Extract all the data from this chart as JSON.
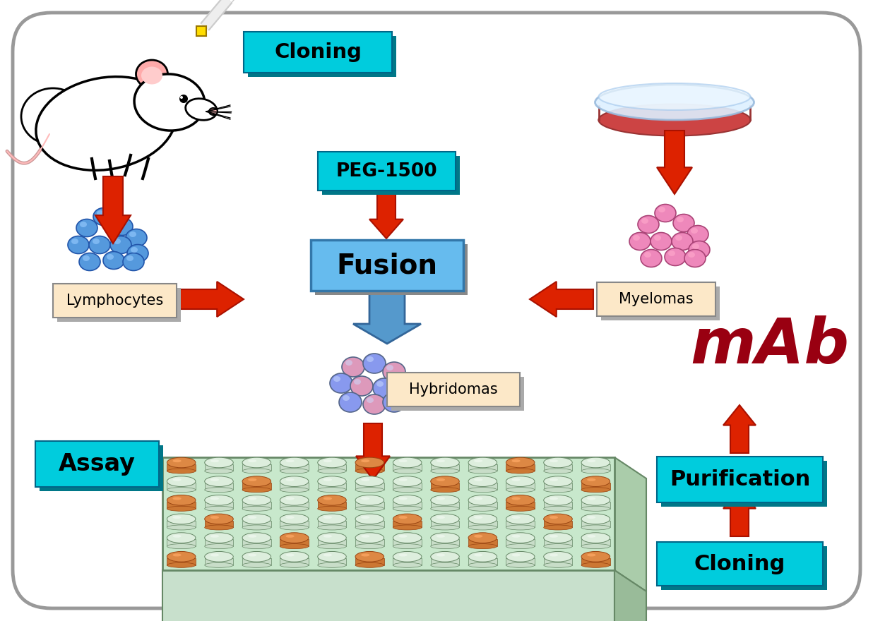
{
  "background_color": "#ffffff",
  "border_color": "#999999",
  "cyan_box_color": "#00ccdd",
  "cyan_shadow_color": "#007788",
  "peach_box_color": "#fce8c8",
  "peach_shadow_color": "#aaaaaa",
  "red_arrow_color": "#dd2200",
  "red_arrow_edge": "#aa1100",
  "fusion_box_color": "#66bbee",
  "fusion_shadow_color": "#888888",
  "fusion_text_color": "#000000",
  "blue_arrow_color": "#5599cc",
  "blue_arrow_edge": "#336699",
  "mab_text_color": "#990011",
  "lymphocyte_color": "#5599dd",
  "lymphocyte_edge": "#2255aa",
  "myeloma_color": "#ee88bb",
  "myeloma_edge": "#aa4477",
  "hybridoma_blue": "#8899ee",
  "hybridoma_pink": "#dd99bb",
  "well_plate_top": "#c8e8cc",
  "well_plate_side": "#99cc99",
  "well_plate_bottom": "#88bb88",
  "well_plate_edge": "#668866",
  "well_glass_color": "#ddeedd",
  "well_orange_color": "#cc7733",
  "well_orange_edge": "#994411",
  "labels": {
    "cloning_top": "Cloning",
    "peg": "PEG-1500",
    "fusion": "Fusion",
    "lymphocytes": "Lymphocytes",
    "myelomas": "Myelomas",
    "hybridomas": "Hybridomas",
    "assay": "Assay",
    "purification": "Purification",
    "cloning_bottom": "Cloning",
    "mab": "mAb"
  },
  "orange_wells": [
    [
      0,
      0
    ],
    [
      0,
      5
    ],
    [
      0,
      9
    ],
    [
      1,
      2
    ],
    [
      1,
      7
    ],
    [
      1,
      11
    ],
    [
      2,
      0
    ],
    [
      2,
      4
    ],
    [
      2,
      9
    ],
    [
      3,
      1
    ],
    [
      3,
      6
    ],
    [
      3,
      10
    ],
    [
      4,
      3
    ],
    [
      4,
      8
    ],
    [
      5,
      0
    ],
    [
      5,
      5
    ],
    [
      5,
      11
    ]
  ]
}
